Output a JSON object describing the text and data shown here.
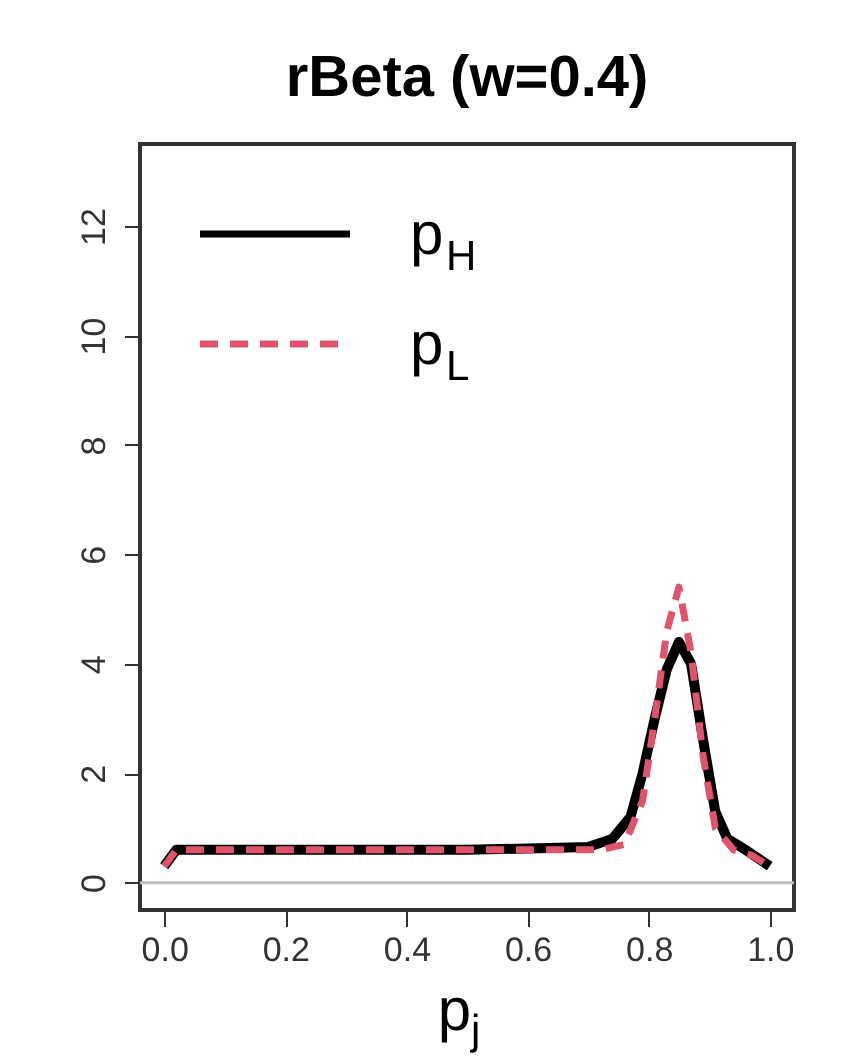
{
  "chart_data": {
    "type": "line",
    "title": "rBeta (w=0.4)",
    "xlabel": "p$_{j}$",
    "xlim": [
      -0.04,
      1.04
    ],
    "ylim": [
      -0.5,
      13.5
    ],
    "xticks": [
      {
        "value": 0,
        "label": "0.0"
      },
      0.2,
      0.4,
      0.6,
      0.8,
      {
        "value": 1,
        "label": "1.0"
      }
    ],
    "yticks": [
      0,
      2,
      4,
      6,
      8,
      10,
      12
    ],
    "grid": false,
    "legend": "top left",
    "ref_lines": [
      {
        "axis": "y",
        "value": 0,
        "color": "#bebebe",
        "line_style": "solid"
      }
    ],
    "series": [
      {
        "name": "p$_{H}$",
        "color": "#000000",
        "line_style": "solid",
        "x": [
          0,
          0.02,
          0.1,
          0.3,
          0.5,
          0.7,
          0.74,
          0.77,
          0.79,
          0.81,
          0.83,
          0.85,
          0.87,
          0.89,
          0.91,
          0.93,
          0.96,
          1.0
        ],
        "values": [
          0.3,
          0.6,
          0.6,
          0.6,
          0.6,
          0.65,
          0.8,
          1.2,
          2.0,
          3.0,
          3.9,
          4.4,
          4.0,
          2.6,
          1.3,
          0.8,
          0.6,
          0.3
        ]
      },
      {
        "name": "p$_{L}$",
        "color": "#df536b",
        "line_style": "dashed",
        "x": [
          0,
          0.02,
          0.1,
          0.3,
          0.5,
          0.72,
          0.76,
          0.79,
          0.81,
          0.83,
          0.85,
          0.87,
          0.89,
          0.91,
          0.94,
          0.97,
          1.0
        ],
        "values": [
          0.3,
          0.6,
          0.6,
          0.6,
          0.6,
          0.6,
          0.7,
          1.5,
          3.0,
          4.6,
          5.4,
          4.2,
          2.3,
          1.0,
          0.6,
          0.5,
          0.3
        ]
      }
    ]
  }
}
